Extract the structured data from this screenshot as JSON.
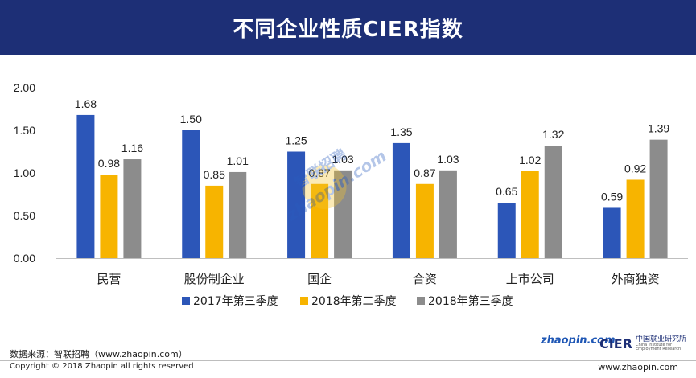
{
  "header": {
    "title": "不同企业性质CIER指数"
  },
  "chart_data": {
    "type": "bar",
    "categories": [
      "民营",
      "股份制企业",
      "国企",
      "合资",
      "上市公司",
      "外商独资"
    ],
    "series": [
      {
        "name": "2017年第三季度",
        "color": "#2c56b8",
        "values": [
          1.68,
          1.5,
          1.25,
          1.35,
          0.65,
          0.59
        ]
      },
      {
        "name": "2018年第二季度",
        "color": "#f7b400",
        "values": [
          0.98,
          0.85,
          0.87,
          0.87,
          1.02,
          0.92
        ]
      },
      {
        "name": "2018年第三季度",
        "color": "#8c8c8c",
        "values": [
          1.16,
          1.01,
          1.03,
          1.03,
          1.32,
          1.39
        ]
      }
    ],
    "yticks": [
      "0.00",
      "0.50",
      "1.00",
      "1.50",
      "2.00"
    ],
    "ylim": [
      0,
      2
    ],
    "legend_position": "bottom",
    "grid": false
  },
  "footer": {
    "source": "数据来源：智联招聘（www.zhaopin.com）",
    "copyright": "Copyright © 2018 Zhaopin all rights reserved",
    "url": "www.zhaopin.com"
  },
  "logos": {
    "zhaopin": "zhaopin.com",
    "cier": "CIER",
    "cier_cn": "中国就业研究所",
    "cier_en": "China Institute for Employment Research"
  },
  "watermark": {
    "cn": "智联招聘",
    "en": "zhaopin.com"
  }
}
